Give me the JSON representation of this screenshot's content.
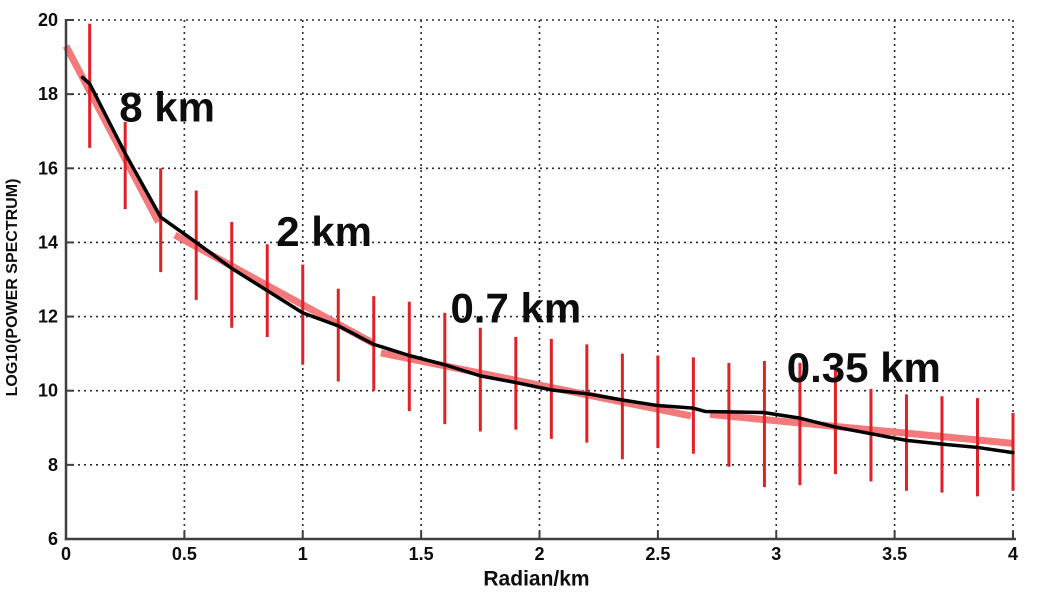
{
  "page": {
    "background": "#ffffff"
  },
  "chart_data": {
    "type": "line",
    "title": "",
    "xlabel": "Radian/km",
    "ylabel": "LOG10(POWER SPECTRUM)",
    "xlim": [
      0,
      4
    ],
    "ylim": [
      6,
      20
    ],
    "x_ticks": {
      "values": [
        0,
        0.5,
        1,
        1.5,
        2,
        2.5,
        3,
        3.5,
        4
      ],
      "labels": [
        "0",
        "0.5",
        "1",
        "1.5",
        "2",
        "2.5",
        "3",
        "3.5",
        "4"
      ]
    },
    "y_ticks": {
      "values": [
        6,
        8,
        10,
        12,
        14,
        16,
        18,
        20
      ],
      "labels": [
        "6",
        "8",
        "10",
        "12",
        "14",
        "16",
        "18",
        "20"
      ]
    },
    "grid": {
      "style": "dotted",
      "on": true
    },
    "legend": {
      "on": false
    },
    "colors": {
      "curve": "#000000",
      "error_bar": "#e02126",
      "fit_band": "#f3797b",
      "axis": "#3f3f3f",
      "grid": "#2b2b2b",
      "text": "#0d0d0d"
    },
    "series": [
      {
        "name": "power-spectrum-curve",
        "type": "line",
        "color_key": "curve",
        "points": [
          [
            0.07,
            18.45
          ],
          [
            0.1,
            18.28
          ],
          [
            0.25,
            16.4
          ],
          [
            0.4,
            14.68
          ],
          [
            0.55,
            14.0
          ],
          [
            0.7,
            13.3
          ],
          [
            0.85,
            12.7
          ],
          [
            1.0,
            12.1
          ],
          [
            1.15,
            11.75
          ],
          [
            1.3,
            11.25
          ],
          [
            1.45,
            10.95
          ],
          [
            1.6,
            10.7
          ],
          [
            1.75,
            10.4
          ],
          [
            1.9,
            10.22
          ],
          [
            2.05,
            10.02
          ],
          [
            2.2,
            9.92
          ],
          [
            2.35,
            9.75
          ],
          [
            2.5,
            9.6
          ],
          [
            2.65,
            9.53
          ],
          [
            2.7,
            9.44
          ],
          [
            2.8,
            9.43
          ],
          [
            2.95,
            9.41
          ],
          [
            3.1,
            9.26
          ],
          [
            3.25,
            9.02
          ],
          [
            3.4,
            8.84
          ],
          [
            3.55,
            8.66
          ],
          [
            3.7,
            8.56
          ],
          [
            3.85,
            8.47
          ],
          [
            4.0,
            8.33
          ]
        ]
      },
      {
        "name": "error-bars",
        "type": "errorbar",
        "color_key": "error_bar",
        "bars": [
          [
            0.1,
            19.9,
            16.55
          ],
          [
            0.25,
            17.25,
            14.9
          ],
          [
            0.4,
            16.0,
            13.2
          ],
          [
            0.55,
            15.4,
            12.45
          ],
          [
            0.7,
            14.55,
            11.7
          ],
          [
            0.85,
            13.95,
            11.45
          ],
          [
            1.0,
            13.4,
            10.7
          ],
          [
            1.15,
            12.75,
            10.25
          ],
          [
            1.3,
            12.55,
            10.0
          ],
          [
            1.45,
            12.4,
            9.45
          ],
          [
            1.6,
            12.1,
            9.1
          ],
          [
            1.75,
            11.7,
            8.9
          ],
          [
            1.9,
            11.45,
            8.95
          ],
          [
            2.05,
            11.4,
            8.7
          ],
          [
            2.2,
            11.25,
            8.6
          ],
          [
            2.35,
            11.0,
            8.15
          ],
          [
            2.5,
            10.95,
            8.45
          ],
          [
            2.65,
            10.9,
            8.3
          ],
          [
            2.8,
            10.75,
            7.95
          ],
          [
            2.95,
            10.8,
            7.4
          ],
          [
            3.1,
            10.75,
            7.45
          ],
          [
            3.25,
            10.65,
            7.75
          ],
          [
            3.4,
            10.05,
            7.55
          ],
          [
            3.55,
            9.9,
            7.3
          ],
          [
            3.7,
            9.85,
            7.25
          ],
          [
            3.85,
            9.8,
            7.15
          ],
          [
            4.0,
            9.4,
            7.3
          ]
        ]
      }
    ],
    "fit_segments": [
      {
        "label": "8 km",
        "from": [
          0.0,
          19.3
        ],
        "to": [
          0.39,
          14.55
        ]
      },
      {
        "label": "2 km",
        "from": [
          0.46,
          14.2
        ],
        "to": [
          1.3,
          11.27
        ]
      },
      {
        "label": "0.7 km",
        "from": [
          1.33,
          11.02
        ],
        "to": [
          2.64,
          9.32
        ]
      },
      {
        "label": "0.35 km",
        "from": [
          2.72,
          9.36
        ],
        "to": [
          4.0,
          8.58
        ]
      }
    ],
    "annotations": [
      {
        "text": "8 km",
        "x": 0.427,
        "y": 17.65
      },
      {
        "text": "2 km",
        "x": 1.09,
        "y": 14.3
      },
      {
        "text": "0.7 km",
        "x": 1.9,
        "y": 12.23
      },
      {
        "text": "0.35 km",
        "x": 3.37,
        "y": 10.63
      }
    ]
  }
}
